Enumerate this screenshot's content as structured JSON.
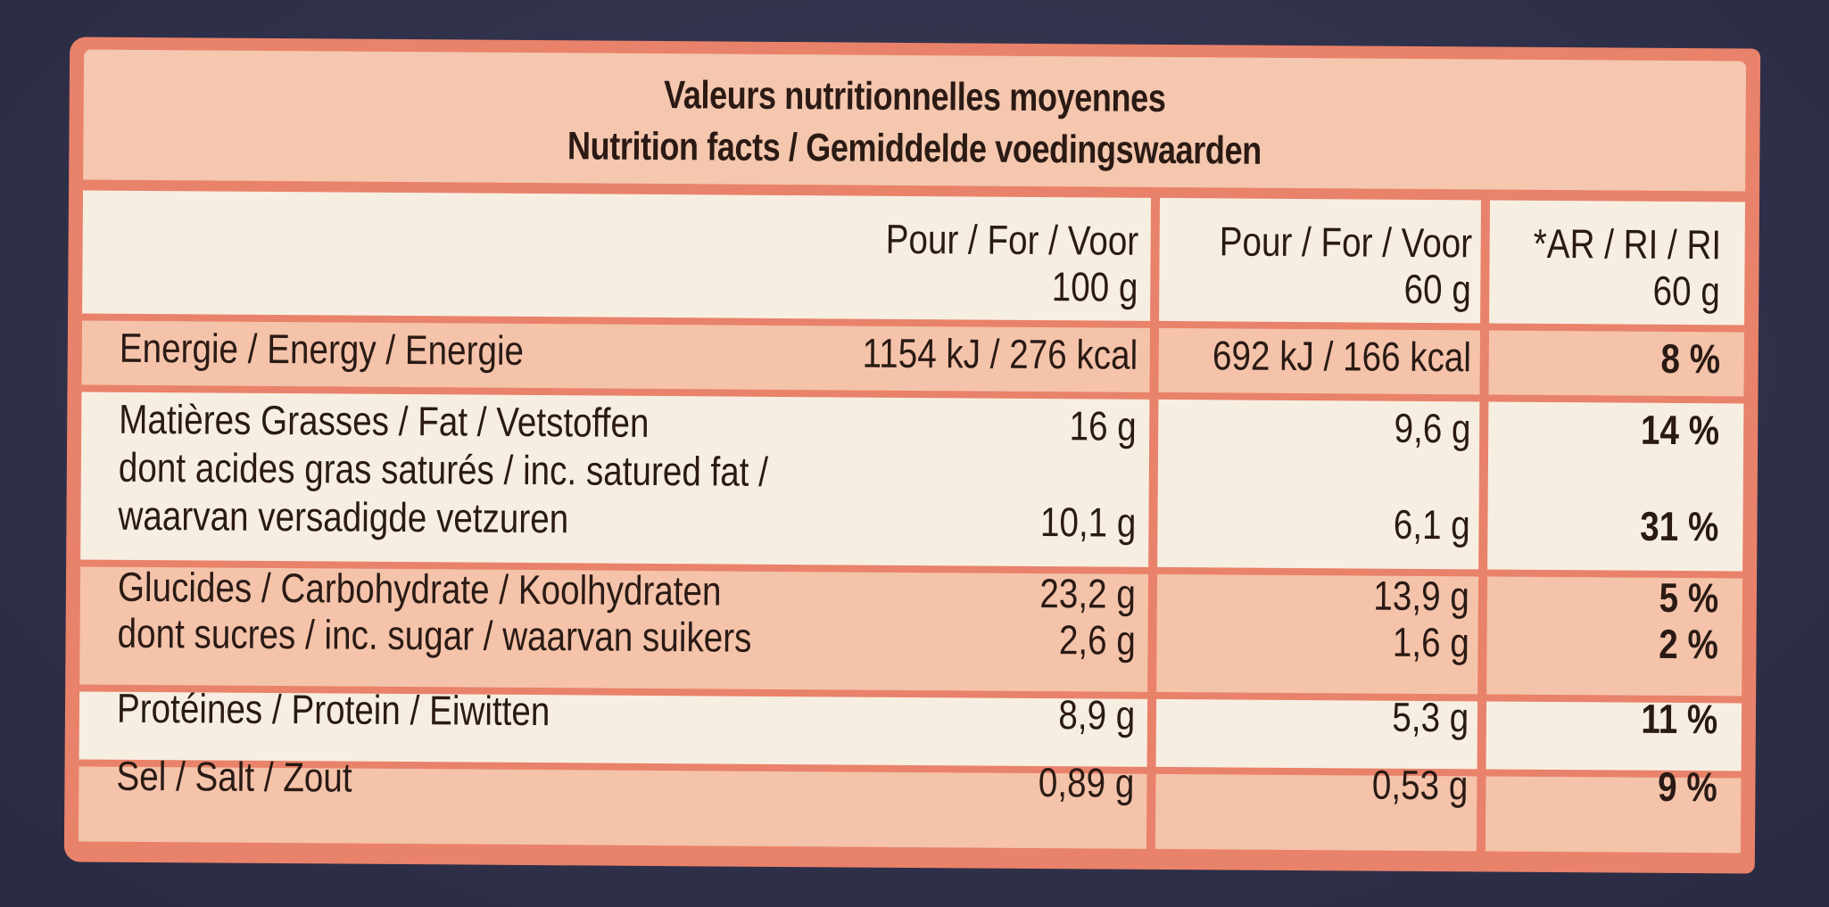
{
  "header": {
    "title_fr": "Valeurs nutritionnelles moyennes",
    "title_en_nl": "Nutrition facts / Gemiddelde voedingswaarden"
  },
  "columns": {
    "per100_line1": "Pour / For / Voor",
    "per100_line2": "100 g",
    "per60_line1": "Pour / For / Voor",
    "per60_line2": "60 g",
    "ri_line1": "*AR / RI / RI",
    "ri_line2": "60 g"
  },
  "rows": {
    "energy": {
      "label": "Energie / Energy / Energie",
      "per100": "1154 kJ / 276 kcal",
      "per60": "692 kJ / 166 kcal",
      "ri": "8 %"
    },
    "fat": {
      "label": "Matières Grasses / Fat / Vetstoffen",
      "per100": "16 g",
      "per60": "9,6 g",
      "ri": "14 %"
    },
    "saturated": {
      "label_line1": "dont acides gras saturés / inc. satured fat /",
      "label_line2": "waarvan versadigde vetzuren",
      "per100": "10,1 g",
      "per60": "6,1 g",
      "ri": "31 %"
    },
    "carbs": {
      "label": "Glucides / Carbohydrate / Koolhydraten",
      "per100": "23,2 g",
      "per60": "13,9 g",
      "ri": "5 %"
    },
    "sugar": {
      "label": "dont sucres / inc. sugar / waarvan suikers",
      "per100": "2,6 g",
      "per60": "1,6 g",
      "ri": "2 %"
    },
    "protein": {
      "label": "Protéines / Protein / Eiwitten",
      "per100": "8,9 g",
      "per60": "5,3 g",
      "ri": "11 %"
    },
    "salt": {
      "label": "Sel / Salt / Zout",
      "per100": "0,89 g",
      "per60": "0,53 g",
      "ri": "9 %"
    }
  },
  "colors": {
    "background": "#33344f",
    "border": "#e9826a",
    "light_row": "#f7eee2",
    "pink_row": "#f4c3aa",
    "text": "#2a1a14"
  }
}
